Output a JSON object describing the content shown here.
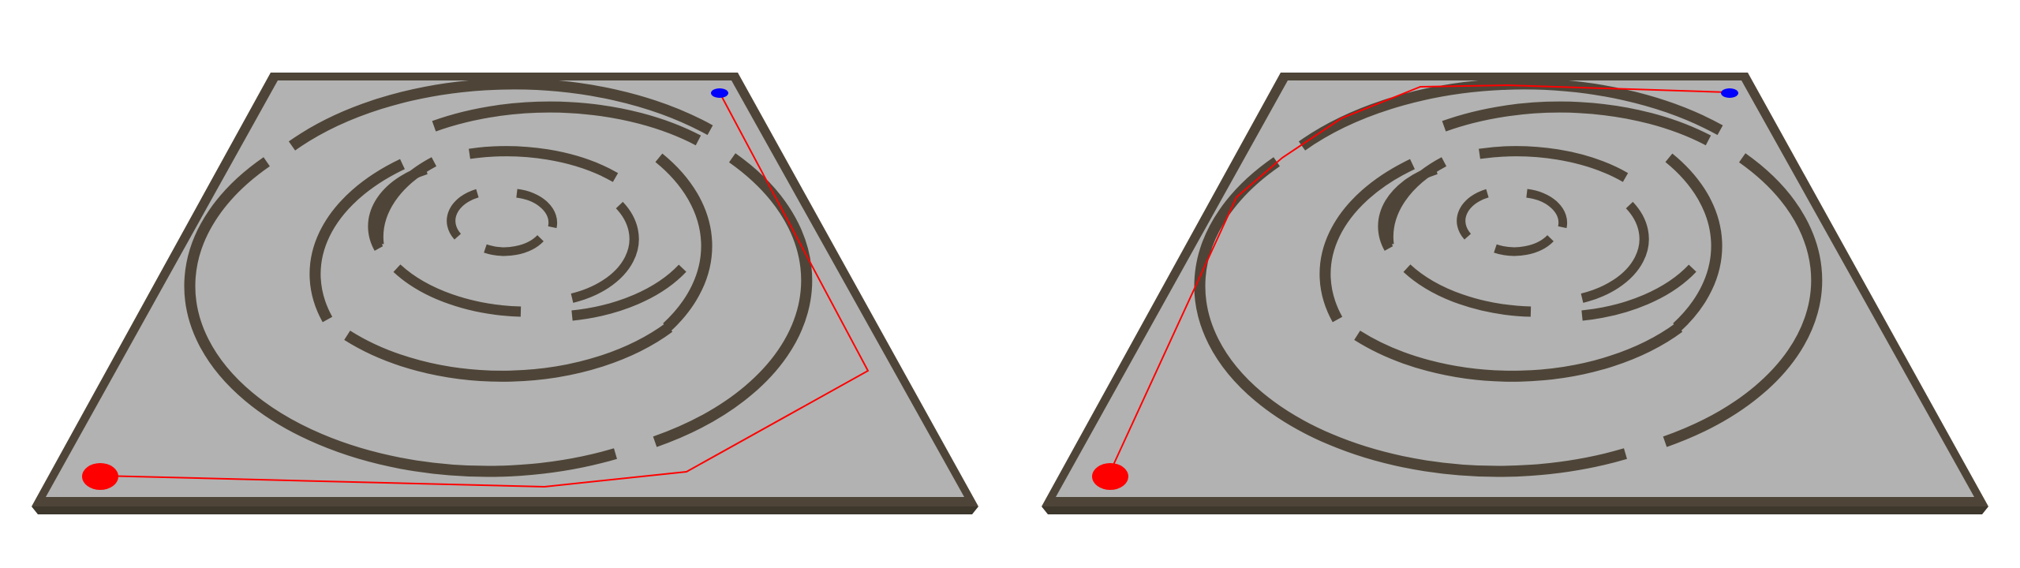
{
  "scene": {
    "background_color": "#ffffff",
    "floor_color": "#b2b2b2",
    "wall_color": "#4e4538",
    "wall_top_color": "#6a6051",
    "path_color": "#ff0000",
    "start_marker_color": "#ff0000",
    "goal_marker_color": "#0000ff"
  },
  "panels": [
    {
      "id": "left",
      "path_description_name": "route-around-right-side"
    },
    {
      "id": "right",
      "path_description_name": "route-around-left-side"
    }
  ]
}
